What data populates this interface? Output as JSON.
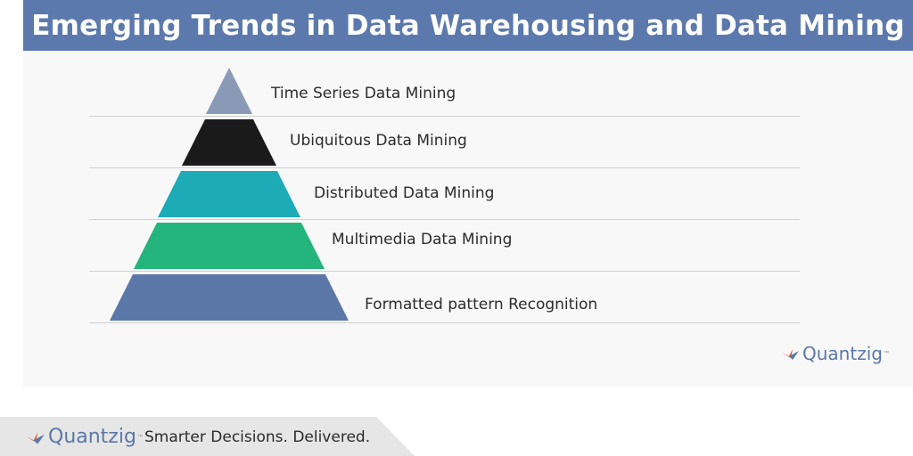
{
  "header": {
    "title": "Emerging Trends in Data Warehousing and Data Mining"
  },
  "colors": {
    "header_bg": "#5b79ad",
    "layer_1": "#8a9ab6",
    "layer_2": "#1a1a1a",
    "layer_3": "#1eabb8",
    "layer_4": "#23b57b",
    "layer_5": "#5b77a7",
    "logo_orange": "#e8552b",
    "logo_blue": "#5c78a8"
  },
  "pyramid": {
    "layers": [
      {
        "label": "Time Series Data Mining"
      },
      {
        "label": "Ubiquitous Data Mining"
      },
      {
        "label": "Distributed Data Mining"
      },
      {
        "label": "Multimedia Data Mining"
      },
      {
        "label": "Formatted pattern Recognition"
      }
    ]
  },
  "logo": {
    "name": "Quantzig",
    "trademark": "™"
  },
  "footer": {
    "tagline": "Smarter Decisions. Delivered."
  }
}
